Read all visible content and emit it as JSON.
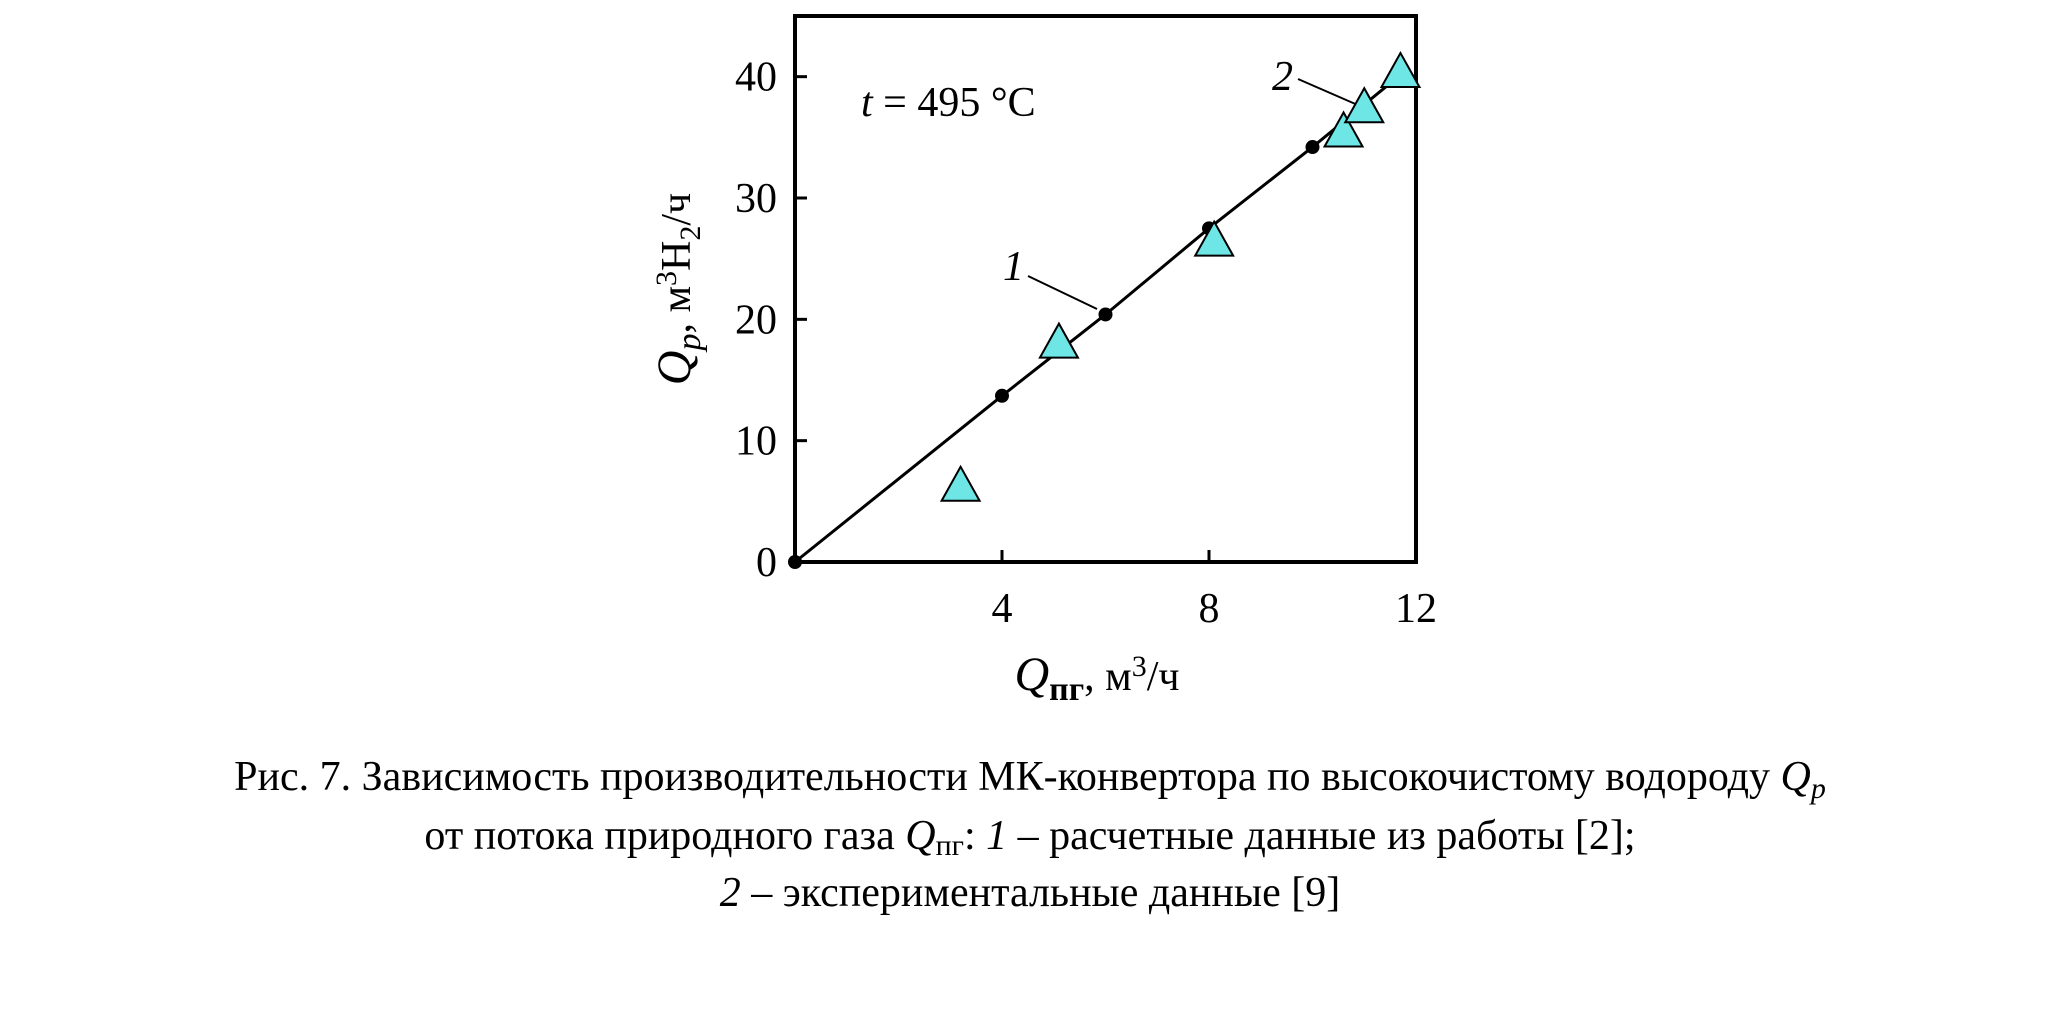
{
  "chart_data": {
    "type": "scatter",
    "xlim": [
      0,
      12
    ],
    "xticks": [
      4,
      8,
      12
    ],
    "ylim": [
      0,
      45
    ],
    "yticks": [
      0,
      10,
      20,
      30,
      40
    ],
    "annotation": {
      "var": "t",
      "text": " = 495 °C"
    },
    "y_label": {
      "q": "Q",
      "sub": "p",
      "unit": ", м",
      "sup": "3",
      "h": "H",
      "hsub": "2",
      "tail": "/ч"
    },
    "x_label": {
      "q": "Q",
      "sub": "пг",
      "unit": ", м",
      "sup": "3",
      "tail": "/ч"
    },
    "series": [
      {
        "name": "1",
        "marker": "circle",
        "line": true,
        "color": "#000000",
        "x": [
          0,
          4,
          6,
          8,
          10,
          11.6
        ],
        "values": [
          0,
          13.7,
          20.4,
          27.5,
          34.2,
          39.8
        ]
      },
      {
        "name": "2",
        "marker": "triangle",
        "line": false,
        "color": "#6fe6e6",
        "x": [
          3.2,
          5.1,
          8.1,
          10.6,
          11.0,
          11.7
        ],
        "values": [
          6.2,
          18.0,
          26.4,
          35.4,
          37.4,
          40.3
        ]
      }
    ],
    "caption": {
      "l1": "Рис. 7. Зависимость производительности МК-конвертора по высокочистому водороду ",
      "l1q": "Q",
      "l1sub": "p",
      "l2a": "от потока природного газа ",
      "l2q": "Q",
      "l2sub": "пг",
      "l2b": ": ",
      "l2n": "1",
      "l2c": " – расчетные данные из работы [2];",
      "l3n": "2",
      "l3c": " – экспериментальные данные [9]"
    }
  }
}
